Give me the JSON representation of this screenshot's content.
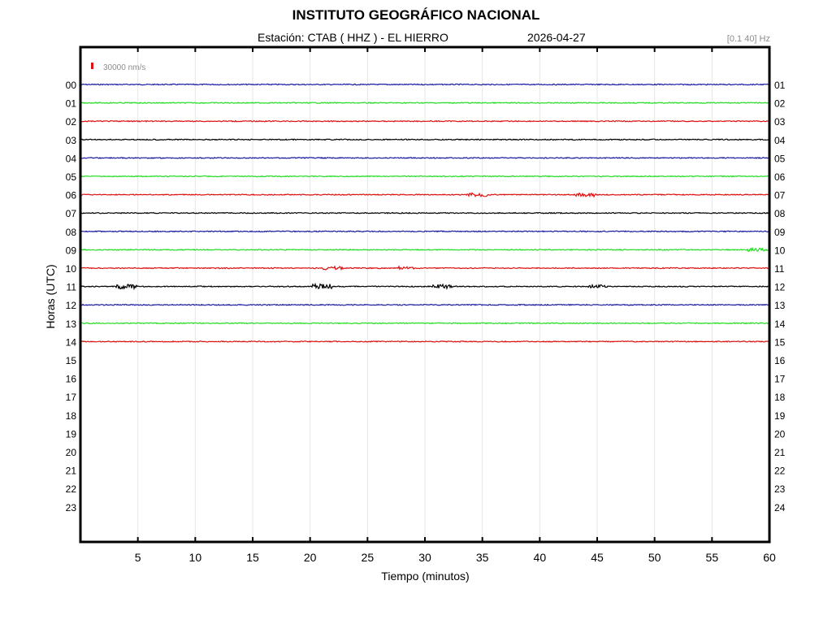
{
  "header": {
    "title": "INSTITUTO GEOGRÁFICO NACIONAL",
    "station_line": "Estación:  CTAB ( HHZ ) - EL HIERRO",
    "date": "2026-04-27",
    "filter": "[0.1 40] Hz"
  },
  "chart_data": {
    "type": "line",
    "title": "INSTITUTO GEOGRÁFICO NACIONAL",
    "xlabel": "Tiempo (minutos)",
    "ylabel": "Horas (UTC)",
    "xlim": [
      0,
      60
    ],
    "x_ticks": [
      5,
      10,
      15,
      20,
      25,
      30,
      35,
      40,
      45,
      50,
      55,
      60
    ],
    "left_hour_labels": [
      "00",
      "01",
      "02",
      "03",
      "04",
      "05",
      "06",
      "07",
      "08",
      "09",
      "10",
      "11",
      "12",
      "13",
      "14",
      "15",
      "16",
      "17",
      "18",
      "19",
      "20",
      "21",
      "22",
      "23"
    ],
    "right_hour_labels": [
      "01",
      "02",
      "03",
      "04",
      "05",
      "06",
      "07",
      "08",
      "09",
      "10",
      "11",
      "12",
      "13",
      "14",
      "15",
      "16",
      "17",
      "18",
      "19",
      "20",
      "21",
      "22",
      "23",
      "24"
    ],
    "scale_label": "30000 nm/s",
    "grid": true,
    "traces": [
      {
        "hour": "00",
        "color": "#1a1aa0",
        "end_minute": 60
      },
      {
        "hour": "01",
        "color": "#22dd22",
        "end_minute": 60
      },
      {
        "hour": "02",
        "color": "#dd1111",
        "end_minute": 60
      },
      {
        "hour": "03",
        "color": "#000000",
        "end_minute": 60
      },
      {
        "hour": "04",
        "color": "#1a1aa0",
        "end_minute": 60
      },
      {
        "hour": "05",
        "color": "#22dd22",
        "end_minute": 60
      },
      {
        "hour": "06",
        "color": "#dd1111",
        "end_minute": 60
      },
      {
        "hour": "07",
        "color": "#000000",
        "end_minute": 60
      },
      {
        "hour": "08",
        "color": "#1a1aa0",
        "end_minute": 60
      },
      {
        "hour": "09",
        "color": "#22dd22",
        "end_minute": 60
      },
      {
        "hour": "10",
        "color": "#dd1111",
        "end_minute": 60
      },
      {
        "hour": "11",
        "color": "#000000",
        "end_minute": 60
      },
      {
        "hour": "12",
        "color": "#1a1aa0",
        "end_minute": 60
      },
      {
        "hour": "13",
        "color": "#22dd22",
        "end_minute": 60
      },
      {
        "hour": "14",
        "color": "#dd1111",
        "end_minute": 60
      }
    ],
    "events": [
      {
        "hour": "06",
        "minute": 34.5,
        "amplitude": 2.5
      },
      {
        "hour": "06",
        "minute": 44.0,
        "amplitude": 2.5
      },
      {
        "hour": "09",
        "minute": 59.0,
        "amplitude": 2
      },
      {
        "hour": "10",
        "minute": 22.0,
        "amplitude": 2
      },
      {
        "hour": "10",
        "minute": 28.5,
        "amplitude": 2
      },
      {
        "hour": "11",
        "minute": 4.0,
        "amplitude": 3
      },
      {
        "hour": "11",
        "minute": 21.0,
        "amplitude": 3
      },
      {
        "hour": "11",
        "minute": 31.5,
        "amplitude": 2.5
      },
      {
        "hour": "11",
        "minute": 45.0,
        "amplitude": 2
      }
    ]
  }
}
